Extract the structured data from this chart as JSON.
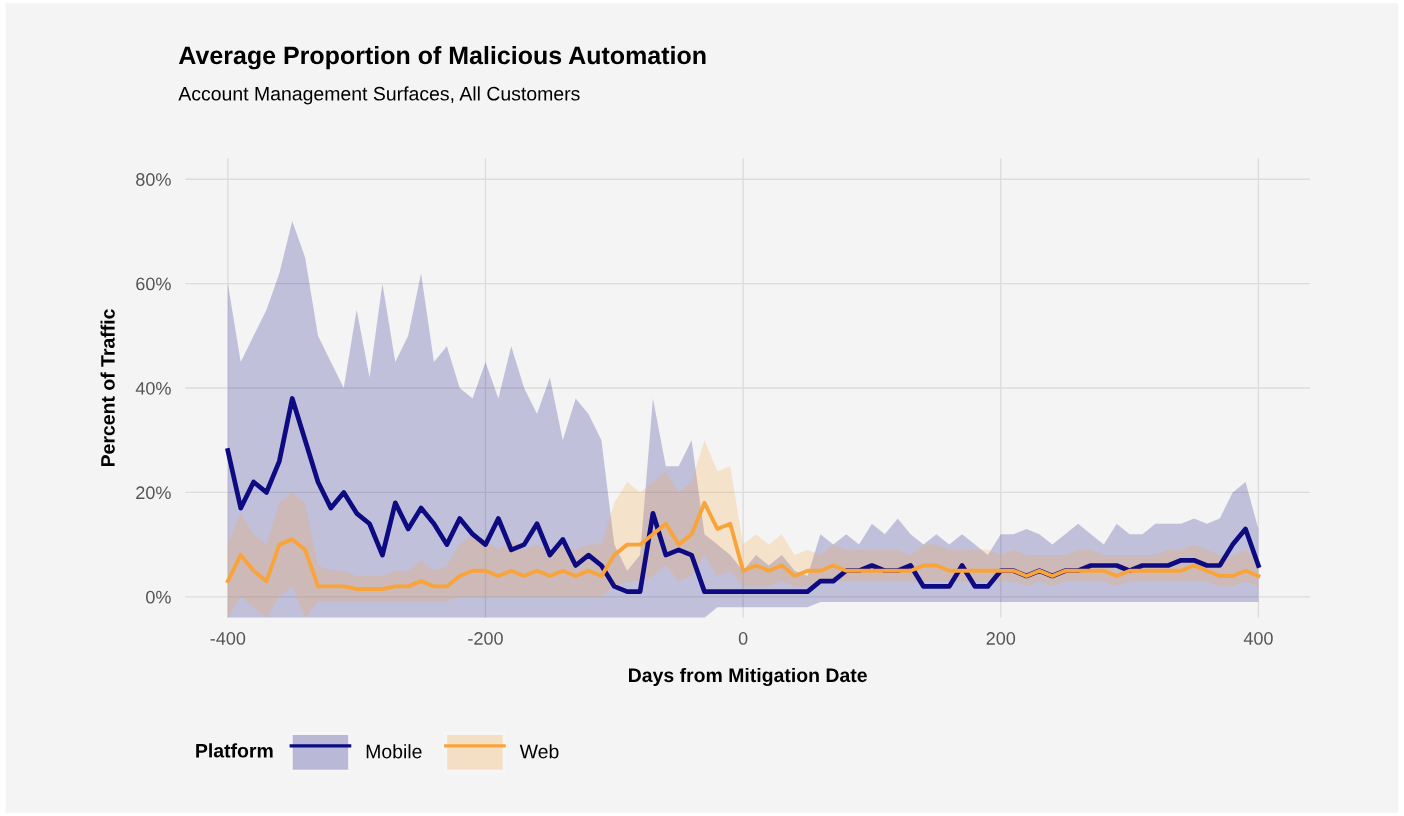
{
  "chart_data": {
    "type": "line",
    "title": "Average Proportion of Malicious Automation",
    "subtitle": "Account Management Surfaces, All Customers",
    "xlabel": "Days from Mitigation Date",
    "ylabel": "Percent of Traffic",
    "legend_title": "Platform",
    "x": [
      -400,
      -390,
      -380,
      -370,
      -360,
      -350,
      -340,
      -330,
      -320,
      -310,
      -300,
      -290,
      -280,
      -270,
      -260,
      -250,
      -240,
      -230,
      -220,
      -210,
      -200,
      -190,
      -180,
      -170,
      -160,
      -150,
      -140,
      -130,
      -120,
      -110,
      -100,
      -90,
      -80,
      -70,
      -60,
      -50,
      -40,
      -30,
      -20,
      -10,
      0,
      10,
      20,
      30,
      40,
      50,
      60,
      70,
      80,
      90,
      100,
      110,
      120,
      130,
      140,
      150,
      160,
      170,
      180,
      190,
      200,
      210,
      220,
      230,
      240,
      250,
      260,
      270,
      280,
      290,
      300,
      310,
      320,
      330,
      340,
      350,
      360,
      370,
      380,
      390,
      400
    ],
    "series": [
      {
        "name": "Mobile",
        "color": "#0d0a82",
        "values": [
          28,
          17,
          22,
          20,
          26,
          38,
          30,
          22,
          17,
          20,
          16,
          14,
          8,
          18,
          13,
          17,
          14,
          10,
          15,
          12,
          10,
          15,
          9,
          10,
          14,
          8,
          11,
          6,
          8,
          6,
          2,
          1,
          1,
          16,
          8,
          9,
          8,
          1,
          1,
          1,
          1,
          1,
          1,
          1,
          1,
          1,
          3,
          3,
          5,
          5,
          6,
          5,
          5,
          6,
          2,
          2,
          2,
          6,
          2,
          2,
          5,
          5,
          4,
          5,
          4,
          5,
          5,
          6,
          6,
          6,
          5,
          6,
          6,
          6,
          7,
          7,
          6,
          6,
          10,
          13,
          6
        ],
        "upper": [
          60,
          45,
          50,
          55,
          62,
          72,
          65,
          50,
          45,
          40,
          55,
          42,
          60,
          45,
          50,
          62,
          45,
          48,
          40,
          38,
          45,
          38,
          48,
          40,
          35,
          42,
          30,
          38,
          35,
          30,
          10,
          5,
          8,
          38,
          25,
          25,
          30,
          12,
          10,
          8,
          5,
          8,
          6,
          8,
          5,
          4,
          12,
          10,
          12,
          10,
          14,
          12,
          15,
          12,
          10,
          12,
          10,
          12,
          10,
          8,
          12,
          12,
          13,
          12,
          10,
          12,
          14,
          12,
          10,
          14,
          12,
          12,
          14,
          14,
          14,
          15,
          14,
          15,
          20,
          22,
          13
        ],
        "lower": [
          -4,
          -4,
          -4,
          -4,
          -4,
          -4,
          -4,
          -4,
          -4,
          -4,
          -4,
          -4,
          -4,
          -4,
          -4,
          -4,
          -4,
          -4,
          -4,
          -4,
          -4,
          -4,
          -4,
          -4,
          -4,
          -4,
          -4,
          -4,
          -4,
          -4,
          -4,
          -4,
          -4,
          -4,
          -4,
          -4,
          -4,
          -4,
          -2,
          -2,
          -2,
          -2,
          -2,
          -2,
          -2,
          -2,
          -1,
          -1,
          -1,
          -1,
          -1,
          -1,
          -1,
          -1,
          -1,
          -1,
          -1,
          -1,
          -1,
          -1,
          -1,
          -1,
          -1,
          -1,
          -1,
          -1,
          -1,
          -1,
          -1,
          -1,
          -1,
          -1,
          -1,
          -1,
          -1,
          -1,
          -1,
          -1,
          -1,
          -1,
          -1
        ]
      },
      {
        "name": "Web",
        "color": "#f9a43a",
        "values": [
          3,
          8,
          5,
          3,
          10,
          11,
          9,
          2,
          2,
          2,
          1.5,
          1.5,
          1.5,
          2,
          2,
          3,
          2,
          2,
          4,
          5,
          5,
          4,
          5,
          4,
          5,
          4,
          5,
          4,
          5,
          4,
          8,
          10,
          10,
          12,
          14,
          10,
          12,
          18,
          13,
          14,
          5,
          6,
          5,
          6,
          4,
          5,
          5,
          6,
          5,
          5,
          5,
          5,
          5,
          5,
          6,
          6,
          5,
          5,
          5,
          5,
          5,
          5,
          4,
          5,
          4,
          5,
          5,
          5,
          5,
          4,
          5,
          5,
          5,
          5,
          5,
          6,
          5,
          4,
          4,
          5,
          4
        ],
        "upper": [
          10,
          16,
          12,
          10,
          18,
          20,
          18,
          6,
          5,
          5,
          4,
          4,
          4,
          5,
          5,
          7,
          5,
          6,
          10,
          12,
          11,
          9,
          11,
          9,
          10,
          9,
          10,
          9,
          10,
          10,
          18,
          22,
          20,
          22,
          24,
          20,
          22,
          30,
          24,
          25,
          10,
          12,
          10,
          12,
          8,
          9,
          8,
          10,
          9,
          9,
          9,
          9,
          9,
          8,
          10,
          10,
          9,
          9,
          9,
          9,
          8,
          9,
          8,
          8,
          8,
          8,
          9,
          9,
          8,
          8,
          8,
          8,
          8,
          9,
          9,
          10,
          9,
          8,
          8,
          9,
          7
        ],
        "lower": [
          -4,
          0,
          -2,
          -4,
          0,
          2,
          -4,
          -1,
          -1,
          -1,
          -1,
          -1,
          -1,
          -1,
          -1,
          -1,
          -1,
          -1,
          0,
          0,
          0,
          0,
          0,
          0,
          0,
          0,
          0,
          0,
          0,
          0,
          2,
          3,
          3,
          4,
          6,
          3,
          4,
          8,
          4,
          5,
          2,
          2,
          2,
          3,
          2,
          2,
          3,
          3,
          3,
          3,
          3,
          3,
          3,
          3,
          3,
          3,
          3,
          3,
          3,
          3,
          3,
          3,
          2,
          3,
          2,
          3,
          3,
          3,
          3,
          2,
          3,
          3,
          3,
          3,
          3,
          3,
          3,
          2,
          2,
          3,
          2
        ]
      }
    ],
    "xlim": [
      -433,
      440
    ],
    "ylim": [
      -4,
      84
    ],
    "xticks": [
      -400,
      -200,
      0,
      200,
      400
    ],
    "yticks": [
      {
        "value": 0,
        "label": "0%"
      },
      {
        "value": 20,
        "label": "20%"
      },
      {
        "value": 40,
        "label": "40%"
      },
      {
        "value": 60,
        "label": "60%"
      },
      {
        "value": 80,
        "label": "80%"
      }
    ],
    "grid": true,
    "legend": "bottom left"
  }
}
